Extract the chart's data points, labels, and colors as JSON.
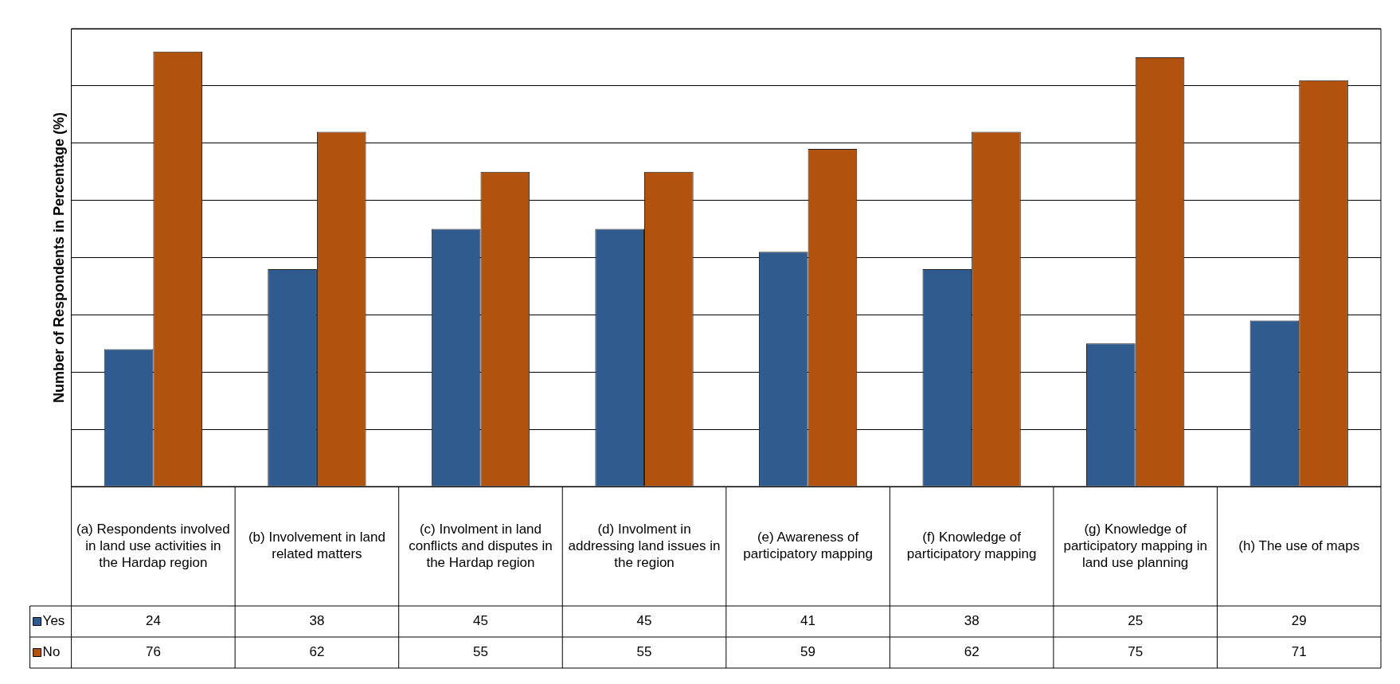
{
  "chart_data": {
    "type": "bar",
    "ylabel": "Number of Respondents in Percentage (%)",
    "categories": [
      "(a) Respondents involved in land use activities in the Hardap region",
      "(b) Involvement in land related matters",
      "(c) Involment in land conflicts and disputes in the Hardap region",
      "(d) Involment in addressing land issues in the region",
      "(e) Awareness of participatory mapping",
      "(f) Knowledge of participatory mapping",
      "(g) Knowledge of participatory mapping in land use planning",
      "(h) The use of maps"
    ],
    "series": [
      {
        "name": "Yes",
        "color": "#2f5b8e",
        "values": [
          24,
          38,
          45,
          45,
          41,
          38,
          25,
          29
        ]
      },
      {
        "name": "No",
        "color": "#b1530f",
        "values": [
          76,
          62,
          55,
          55,
          59,
          62,
          75,
          71
        ]
      }
    ],
    "ylim": [
      0,
      80
    ],
    "yticks": [
      {
        "value": 0,
        "label": null
      },
      {
        "value": 10,
        "label": null
      },
      {
        "value": 20,
        "label": null
      },
      {
        "value": 30,
        "label": null
      },
      {
        "value": 40,
        "label": null
      },
      {
        "value": 50,
        "label": null
      },
      {
        "value": 60,
        "label": null
      },
      {
        "value": 70,
        "label": null
      },
      {
        "value": 80,
        "label": null
      }
    ],
    "grid": "y",
    "legend": "bottom",
    "data_labels": true,
    "tick_labels": false
  }
}
